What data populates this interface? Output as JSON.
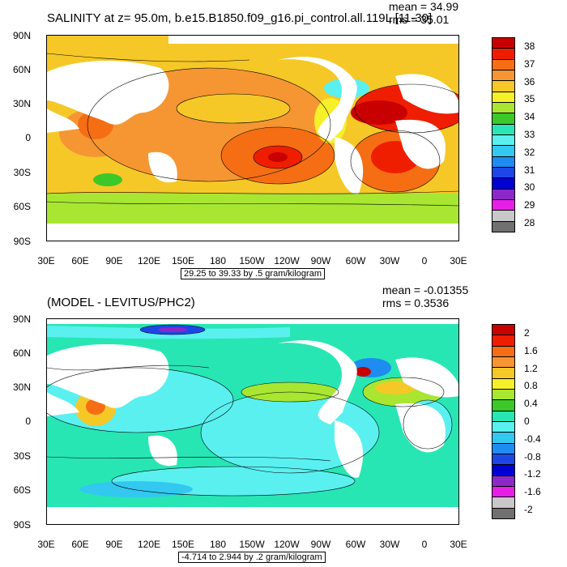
{
  "panels": [
    {
      "title": "SALINITY at z=  95.0m, b.e15.B1850.f09_g16.pi_control.all.119L [11-30]",
      "mean": "mean = 34.99",
      "rms": "rms = 35.01",
      "range_note": "29.25 to 39.33 by .5 gram/kilogram",
      "lat_labels": [
        "90N",
        "60N",
        "30N",
        "0",
        "30S",
        "60S",
        "90S"
      ],
      "lon_labels": [
        "30E",
        "60E",
        "90E",
        "120E",
        "150E",
        "180",
        "150W",
        "120W",
        "90W",
        "60W",
        "30W",
        "0",
        "30E"
      ],
      "colorbar": {
        "labels": [
          "38",
          "37",
          "36",
          "35",
          "34",
          "33",
          "32",
          "31",
          "30",
          "29",
          "28"
        ],
        "colors": [
          "#c80000",
          "#f01e00",
          "#f56e14",
          "#f59632",
          "#f5c828",
          "#f5f028",
          "#a8e632",
          "#3cc828",
          "#28e6b4",
          "#5af0f0",
          "#32c8f0",
          "#1e8cf0",
          "#1e46e6",
          "#0000d2",
          "#8c28c8",
          "#e61ee6",
          "#c8c8c8",
          "#707070"
        ]
      },
      "map_colors": {
        "background": "#f5c828",
        "warm": "#f59632",
        "hot": "#f01e00",
        "cool": "#5af0f0",
        "fresh": "#a8e632",
        "land": "#ffffff"
      }
    },
    {
      "title": "(MODEL - LEVITUS/PHC2)",
      "mean": "mean = -0.01355",
      "rms": "rms = 0.3536",
      "range_note": "-4.714 to 2.944 by .2 gram/kilogram",
      "lat_labels": [
        "90N",
        "60N",
        "30N",
        "0",
        "30S",
        "60S",
        "90S"
      ],
      "lon_labels": [
        "30E",
        "60E",
        "90E",
        "120E",
        "150E",
        "180",
        "150W",
        "120W",
        "90W",
        "60W",
        "30W",
        "0",
        "30E"
      ],
      "colorbar": {
        "labels": [
          "2",
          "1.6",
          "1.2",
          "0.8",
          "0.4",
          "0",
          "-0.4",
          "-0.8",
          "-1.2",
          "-1.6",
          "-2"
        ],
        "colors": [
          "#c80000",
          "#f01e00",
          "#f56e14",
          "#f59632",
          "#f5c828",
          "#f5f028",
          "#a8e632",
          "#3cc828",
          "#28e6b4",
          "#5af0f0",
          "#32c8f0",
          "#1e8cf0",
          "#1e46e6",
          "#0000d2",
          "#8c28c8",
          "#e61ee6",
          "#c8c8c8",
          "#707070"
        ]
      },
      "map_colors": {
        "background": "#28e6b4",
        "warm": "#f5c828",
        "hot": "#f01e00",
        "cool": "#5af0f0",
        "fresh": "#a8e632",
        "land": "#ffffff"
      }
    }
  ]
}
